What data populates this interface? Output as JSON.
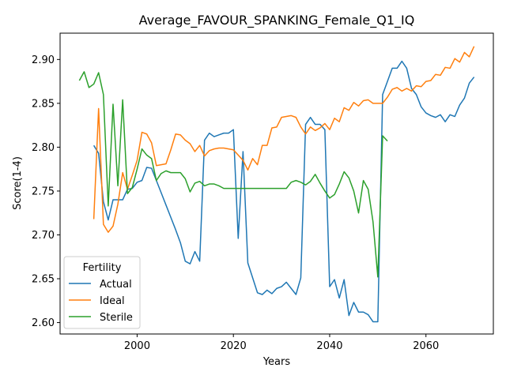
{
  "chart_data": {
    "type": "line",
    "title": "Average_FAVOUR_SPANKING_Female_Q1_IQ",
    "xlabel": "Years",
    "ylabel": "Score(1-4)",
    "xlim": [
      1984,
      2074
    ],
    "ylim": [
      2.587,
      2.93
    ],
    "xticks": [
      2000,
      2020,
      2040,
      2060
    ],
    "yticks": [
      2.6,
      2.65,
      2.7,
      2.75,
      2.8,
      2.85,
      2.9
    ],
    "ytick_labels": [
      "2.60",
      "2.65",
      "2.70",
      "2.75",
      "2.80",
      "2.85",
      "2.90"
    ],
    "grid": false,
    "legend": {
      "title": "Fertility",
      "position": "lower-left"
    },
    "series": [
      {
        "name": "Actual",
        "color": "#1f77b4",
        "x": [
          1991,
          1992,
          1993,
          1994,
          1995,
          1996,
          1997,
          1998,
          1999,
          2000,
          2001,
          2002,
          2003,
          2004,
          2005,
          2006,
          2007,
          2008,
          2009,
          2010,
          2011,
          2012,
          2013,
          2014,
          2015,
          2016,
          2017,
          2018,
          2019,
          2020,
          2021,
          2022,
          2023,
          2024,
          2025,
          2026,
          2027,
          2028,
          2029,
          2030,
          2031,
          2032,
          2033,
          2034,
          2035,
          2036,
          2037,
          2038,
          2039,
          2040,
          2041,
          2042,
          2043,
          2044,
          2045,
          2046,
          2047,
          2048,
          2049,
          2050,
          2051,
          2052,
          2053,
          2054,
          2055,
          2056,
          2057,
          2058,
          2059,
          2060,
          2061,
          2062,
          2063,
          2064,
          2065,
          2066,
          2067,
          2068,
          2069,
          2070
        ],
        "y": [
          2.802,
          2.793,
          2.738,
          2.717,
          2.74,
          2.74,
          2.74,
          2.752,
          2.753,
          2.76,
          2.762,
          2.777,
          2.776,
          2.762,
          2.748,
          2.734,
          2.72,
          2.706,
          2.691,
          2.67,
          2.667,
          2.681,
          2.67,
          2.808,
          2.816,
          2.812,
          2.814,
          2.816,
          2.816,
          2.82,
          2.696,
          2.795,
          2.668,
          2.651,
          2.634,
          2.632,
          2.637,
          2.633,
          2.639,
          2.641,
          2.646,
          2.639,
          2.632,
          2.651,
          2.826,
          2.834,
          2.826,
          2.826,
          2.82,
          2.641,
          2.649,
          2.628,
          2.649,
          2.608,
          2.623,
          2.612,
          2.612,
          2.609,
          2.601,
          2.601,
          2.86,
          2.875,
          2.89,
          2.89,
          2.898,
          2.89,
          2.867,
          2.86,
          2.846,
          2.839,
          2.836,
          2.834,
          2.837,
          2.829,
          2.837,
          2.835,
          2.848,
          2.856,
          2.873,
          2.88
        ]
      },
      {
        "name": "Ideal",
        "color": "#ff7f0e",
        "x": [
          1991,
          1992,
          1993,
          1994,
          1995,
          1996,
          1997,
          1998,
          1999,
          2000,
          2001,
          2002,
          2003,
          2004,
          2005,
          2006,
          2007,
          2008,
          2009,
          2010,
          2011,
          2012,
          2013,
          2014,
          2015,
          2016,
          2017,
          2018,
          2019,
          2020,
          2021,
          2022,
          2023,
          2024,
          2025,
          2026,
          2027,
          2028,
          2029,
          2030,
          2031,
          2032,
          2033,
          2034,
          2035,
          2036,
          2037,
          2038,
          2039,
          2040,
          2041,
          2042,
          2043,
          2044,
          2045,
          2046,
          2047,
          2048,
          2049,
          2050,
          2051,
          2052,
          2053,
          2054,
          2055,
          2056,
          2057,
          2058,
          2059,
          2060,
          2061,
          2062,
          2063,
          2064,
          2065,
          2066,
          2067,
          2068,
          2069,
          2070
        ],
        "y": [
          2.718,
          2.844,
          2.712,
          2.703,
          2.71,
          2.735,
          2.771,
          2.752,
          2.768,
          2.785,
          2.817,
          2.815,
          2.805,
          2.779,
          2.78,
          2.781,
          2.797,
          2.815,
          2.814,
          2.808,
          2.804,
          2.795,
          2.802,
          2.79,
          2.796,
          2.798,
          2.799,
          2.799,
          2.798,
          2.797,
          2.791,
          2.785,
          2.774,
          2.787,
          2.78,
          2.802,
          2.802,
          2.822,
          2.823,
          2.834,
          2.835,
          2.836,
          2.834,
          2.823,
          2.815,
          2.823,
          2.819,
          2.822,
          2.827,
          2.82,
          2.833,
          2.829,
          2.845,
          2.842,
          2.851,
          2.847,
          2.853,
          2.854,
          2.85,
          2.85,
          2.85,
          2.857,
          2.866,
          2.868,
          2.864,
          2.867,
          2.864,
          2.87,
          2.869,
          2.875,
          2.876,
          2.883,
          2.882,
          2.891,
          2.89,
          2.901,
          2.897,
          2.908,
          2.903,
          2.915
        ]
      },
      {
        "name": "Sterile",
        "color": "#2ca02c",
        "x": [
          1988,
          1989,
          1990,
          1991,
          1992,
          1993,
          1994,
          1995,
          1996,
          1997,
          1998,
          1999,
          2000,
          2001,
          2002,
          2003,
          2004,
          2005,
          2006,
          2007,
          2008,
          2009,
          2010,
          2011,
          2012,
          2013,
          2014,
          2015,
          2016,
          2017,
          2018,
          2019,
          2020,
          2021,
          2022,
          2023,
          2024,
          2025,
          2026,
          2027,
          2028,
          2029,
          2030,
          2031,
          2032,
          2033,
          2034,
          2035,
          2036,
          2037,
          2038,
          2039,
          2040,
          2041,
          2042,
          2043,
          2044,
          2045,
          2046,
          2047,
          2048,
          2049,
          2050,
          2051,
          2052
        ],
        "y": [
          2.876,
          2.886,
          2.868,
          2.872,
          2.885,
          2.86,
          2.733,
          2.849,
          2.756,
          2.854,
          2.747,
          2.754,
          2.775,
          2.798,
          2.791,
          2.787,
          2.762,
          2.77,
          2.773,
          2.771,
          2.771,
          2.771,
          2.764,
          2.749,
          2.759,
          2.761,
          2.756,
          2.758,
          2.758,
          2.756,
          2.753,
          2.753,
          2.753,
          2.753,
          2.753,
          2.753,
          2.753,
          2.753,
          2.753,
          2.753,
          2.753,
          2.753,
          2.753,
          2.753,
          2.76,
          2.762,
          2.76,
          2.757,
          2.761,
          2.769,
          2.759,
          2.75,
          2.742,
          2.746,
          2.758,
          2.772,
          2.765,
          2.75,
          2.725,
          2.762,
          2.752,
          2.715,
          2.652,
          2.813,
          2.807
        ]
      }
    ]
  }
}
